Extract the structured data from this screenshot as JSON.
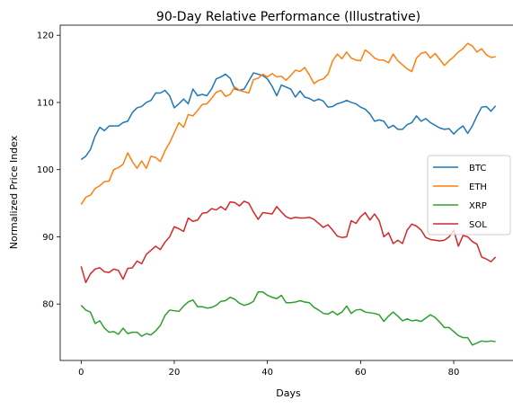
{
  "chart_data": {
    "type": "line",
    "title": "90-Day Relative Performance (Illustrative)",
    "xlabel": "Days",
    "ylabel": "Normalized Price Index",
    "xlim": [
      -4.5,
      93.5
    ],
    "ylim": [
      71.6,
      121.5
    ],
    "xticks": [
      0,
      20,
      40,
      60,
      80
    ],
    "yticks": [
      80,
      90,
      100,
      110,
      120
    ],
    "grid": false,
    "legend_position": "center-right",
    "series": [
      {
        "name": "BTC",
        "color": "#1f77b4",
        "values": [
          101.5,
          102.0,
          103.0,
          105.0,
          106.3,
          105.8,
          106.5,
          106.5,
          106.5,
          107.0,
          107.2,
          108.5,
          109.2,
          109.4,
          110.0,
          110.3,
          111.4,
          111.4,
          111.8,
          111.0,
          109.2,
          109.8,
          110.5,
          109.8,
          112.0,
          111.0,
          111.2,
          111.0,
          112.0,
          113.5,
          113.8,
          114.2,
          113.6,
          112.0,
          111.8,
          112.0,
          113.2,
          114.4,
          114.2,
          114.0,
          113.5,
          112.4,
          111.0,
          112.6,
          112.3,
          112.0,
          110.8,
          111.7,
          110.8,
          110.6,
          110.2,
          110.5,
          110.2,
          109.3,
          109.4,
          109.8,
          110.0,
          110.3,
          110.0,
          109.8,
          109.3,
          109.0,
          108.3,
          107.2,
          107.4,
          107.2,
          106.2,
          106.6,
          106.0,
          106.0,
          106.7,
          107.0,
          108.0,
          107.2,
          107.6,
          107.0,
          106.6,
          106.2,
          106.0,
          106.1,
          105.3,
          106.0,
          106.5,
          105.4,
          106.5,
          108.0,
          109.3,
          109.4,
          108.7,
          109.5
        ]
      },
      {
        "name": "ETH",
        "color": "#ff7f0e",
        "values": [
          94.8,
          95.9,
          96.2,
          97.2,
          97.6,
          98.2,
          98.3,
          100.0,
          100.3,
          100.8,
          102.5,
          101.2,
          100.2,
          101.3,
          100.2,
          102.0,
          101.8,
          101.2,
          102.8,
          104.0,
          105.5,
          107.0,
          106.3,
          108.2,
          108.0,
          108.8,
          109.7,
          109.8,
          110.6,
          111.5,
          111.8,
          110.9,
          111.2,
          112.3,
          111.8,
          111.6,
          111.4,
          113.4,
          113.6,
          114.2,
          113.8,
          114.3,
          113.8,
          113.9,
          113.3,
          114.0,
          114.8,
          114.6,
          115.2,
          114.1,
          112.8,
          113.3,
          113.5,
          114.2,
          116.2,
          117.2,
          116.5,
          117.5,
          116.6,
          116.3,
          116.2,
          117.8,
          117.3,
          116.6,
          116.3,
          116.3,
          115.9,
          117.2,
          116.2,
          115.6,
          115.0,
          114.6,
          116.6,
          117.3,
          117.5,
          116.6,
          117.3,
          116.4,
          115.5,
          116.2,
          116.8,
          117.5,
          118.0,
          118.8,
          118.4,
          117.5,
          118.0,
          117.1,
          116.7,
          116.8
        ]
      },
      {
        "name": "XRP",
        "color": "#2ca02c",
        "values": [
          79.8,
          79.1,
          78.8,
          77.1,
          77.5,
          76.4,
          75.8,
          75.9,
          75.5,
          76.4,
          75.6,
          75.8,
          75.8,
          75.2,
          75.6,
          75.4,
          76.0,
          76.8,
          78.3,
          79.1,
          79.0,
          78.9,
          79.7,
          80.3,
          80.6,
          79.6,
          79.6,
          79.4,
          79.5,
          79.8,
          80.4,
          80.5,
          81.0,
          80.7,
          80.1,
          79.8,
          80.0,
          80.4,
          81.8,
          81.8,
          81.3,
          81.0,
          80.8,
          81.3,
          80.2,
          80.2,
          80.3,
          80.5,
          80.3,
          80.2,
          79.5,
          79.1,
          78.6,
          78.5,
          78.9,
          78.4,
          78.8,
          79.7,
          78.6,
          79.1,
          79.2,
          78.8,
          78.7,
          78.6,
          78.4,
          77.4,
          78.2,
          78.8,
          78.2,
          77.5,
          77.8,
          77.5,
          77.6,
          77.4,
          77.9,
          78.4,
          78.0,
          77.3,
          76.5,
          76.5,
          75.9,
          75.3,
          75.0,
          75.0,
          73.9,
          74.2,
          74.5,
          74.4,
          74.5,
          74.4
        ]
      },
      {
        "name": "SOL",
        "color": "#d62728",
        "values": [
          85.6,
          83.2,
          84.5,
          85.2,
          85.4,
          84.8,
          84.7,
          85.2,
          85.0,
          83.7,
          85.3,
          85.4,
          86.4,
          86.0,
          87.4,
          88.0,
          88.6,
          88.1,
          89.2,
          90.0,
          91.5,
          91.2,
          90.8,
          92.8,
          92.3,
          92.5,
          93.5,
          93.6,
          94.2,
          94.0,
          94.5,
          94.0,
          95.2,
          95.1,
          94.6,
          95.3,
          95.0,
          93.7,
          92.6,
          93.6,
          93.5,
          93.4,
          94.5,
          93.7,
          93.0,
          92.7,
          92.9,
          92.8,
          92.8,
          92.9,
          92.6,
          92.0,
          91.4,
          91.8,
          91.0,
          90.1,
          89.9,
          90.0,
          92.4,
          92.0,
          93.0,
          93.6,
          92.5,
          93.4,
          92.4,
          90.0,
          90.6,
          89.0,
          89.5,
          89.0,
          91.0,
          91.9,
          91.6,
          91.0,
          89.9,
          89.6,
          89.5,
          89.4,
          89.5,
          90.0,
          91.0,
          88.6,
          90.2,
          90.0,
          89.3,
          88.9,
          87.0,
          86.7,
          86.3,
          87.0
        ]
      }
    ]
  }
}
